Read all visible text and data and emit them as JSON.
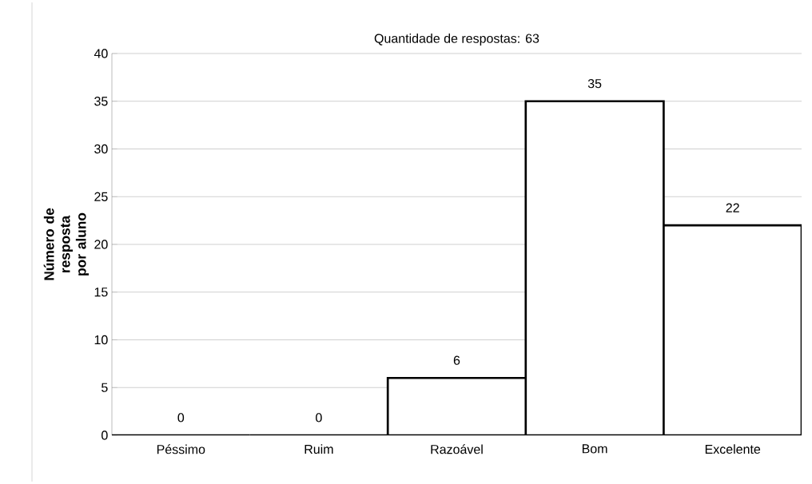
{
  "chart_data": {
    "type": "bar",
    "title": "Quantidade de respostas: 63",
    "ylabel": "Número de resposta por aluno",
    "categories": [
      "Péssimo",
      "Ruim",
      "Razoável",
      "Bom",
      "Excelente"
    ],
    "values": [
      0,
      0,
      6,
      35,
      22
    ],
    "color": "#ffffff",
    "ylim": [
      0,
      40
    ],
    "yticks": [
      0,
      5,
      10,
      15,
      20,
      25,
      30,
      35,
      40
    ],
    "grid": "y",
    "data_labels": true
  }
}
